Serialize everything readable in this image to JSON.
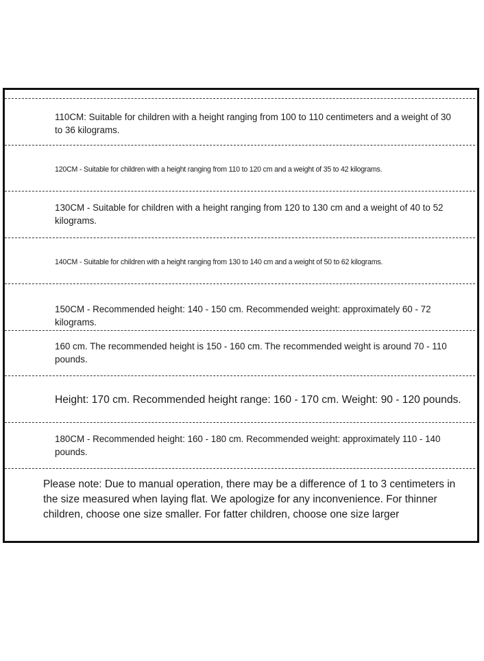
{
  "rows": [
    "110CM: Suitable for children with a height ranging from 100 to 110 centimeters and a weight of 30 to 36 kilograms.",
    "120CM - Suitable for children with a height ranging from 110 to 120 cm and a weight of 35 to 42 kilograms.",
    "130CM - Suitable for children with a height ranging from 120 to 130 cm and a weight of 40 to 52 kilograms.",
    "140CM - Suitable for children with a height ranging from 130 to 140 cm and a weight of 50 to 62 kilograms.",
    "150CM - Recommended height: 140 - 150 cm. Recommended weight: approximately 60 - 72 kilograms.",
    "160 cm. The recommended height is 150 - 160 cm. The recommended weight is around 70 - 110 pounds.",
    "Height: 170 cm. Recommended height range: 160 - 170 cm. Weight: 90 - 120 pounds.",
    "180CM - Recommended height: 160 - 180 cm. Recommended weight: approximately 110 - 140 pounds."
  ],
  "note": "Please note: Due to manual operation, there may be a difference of 1 to 3 centimeters in the size measured when laying flat. We apologize for any inconvenience. For thinner children, choose one size smaller. For fatter children, choose one size larger"
}
